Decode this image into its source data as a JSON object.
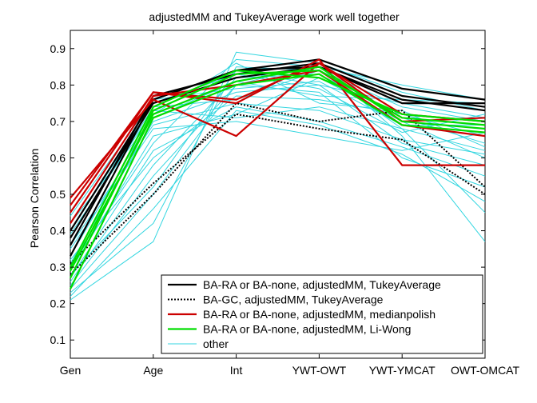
{
  "chart_data": {
    "type": "line",
    "title": "adjustedMM and TukeyAverage work well together",
    "xlabel": "",
    "ylabel": "Pearson Correlation",
    "categories": [
      "Gen",
      "Age",
      "Int",
      "YWT-OWT",
      "YWT-YMCAT",
      "OWT-OMCAT"
    ],
    "y_ticks": [
      "0.1",
      "0.2",
      "0.3",
      "0.4",
      "0.5",
      "0.6",
      "0.7",
      "0.8",
      "0.9"
    ],
    "ylim": [
      0.05,
      0.95
    ],
    "grid": false,
    "legend_position": "bottom-right",
    "legend": [
      {
        "label": "BA-RA or BA-none, adjustedMM, TukeyAverage",
        "color": "#000000",
        "style": "solid"
      },
      {
        "label": "BA-GC, adjustedMM, TukeyAverage",
        "color": "#000000",
        "style": "dotted"
      },
      {
        "label": "BA-RA or BA-none, adjustedMM, medianpolish",
        "color": "#cc0000",
        "style": "solid"
      },
      {
        "label": "BA-RA or BA-none, adjustedMM, Li-Wong",
        "color": "#00dd00",
        "style": "solid"
      },
      {
        "label": "other",
        "color": "#33d6e0",
        "style": "thin"
      }
    ],
    "series": [
      {
        "group": "other",
        "values": [
          0.21,
          0.37,
          0.89,
          0.86,
          0.66,
          0.37
        ]
      },
      {
        "group": "other",
        "values": [
          0.23,
          0.42,
          0.85,
          0.84,
          0.68,
          0.45
        ]
      },
      {
        "group": "other",
        "values": [
          0.25,
          0.55,
          0.8,
          0.78,
          0.6,
          0.52
        ]
      },
      {
        "group": "other",
        "values": [
          0.27,
          0.62,
          0.74,
          0.7,
          0.63,
          0.55
        ]
      },
      {
        "group": "other",
        "values": [
          0.29,
          0.66,
          0.72,
          0.82,
          0.7,
          0.6
        ]
      },
      {
        "group": "other",
        "values": [
          0.31,
          0.7,
          0.78,
          0.8,
          0.64,
          0.58
        ]
      },
      {
        "group": "other",
        "values": [
          0.33,
          0.72,
          0.86,
          0.75,
          0.73,
          0.63
        ]
      },
      {
        "group": "other",
        "values": [
          0.35,
          0.68,
          0.7,
          0.66,
          0.62,
          0.67
        ]
      },
      {
        "group": "other",
        "values": [
          0.38,
          0.74,
          0.76,
          0.84,
          0.74,
          0.7
        ]
      },
      {
        "group": "other",
        "values": [
          0.4,
          0.75,
          0.83,
          0.79,
          0.67,
          0.72
        ]
      },
      {
        "group": "other",
        "values": [
          0.42,
          0.71,
          0.81,
          0.77,
          0.76,
          0.75
        ]
      },
      {
        "group": "other",
        "values": [
          0.44,
          0.76,
          0.79,
          0.81,
          0.69,
          0.69
        ]
      },
      {
        "group": "other",
        "values": [
          0.26,
          0.58,
          0.82,
          0.83,
          0.71,
          0.64
        ]
      },
      {
        "group": "other",
        "values": [
          0.3,
          0.64,
          0.87,
          0.85,
          0.8,
          0.76
        ]
      },
      {
        "group": "other",
        "values": [
          0.36,
          0.69,
          0.75,
          0.73,
          0.65,
          0.61
        ]
      },
      {
        "group": "other",
        "values": [
          0.22,
          0.46,
          0.73,
          0.69,
          0.61,
          0.48
        ]
      },
      {
        "group": "other",
        "values": [
          0.32,
          0.6,
          0.77,
          0.76,
          0.72,
          0.66
        ]
      },
      {
        "group": "other",
        "values": [
          0.28,
          0.52,
          0.84,
          0.8,
          0.75,
          0.71
        ]
      },
      {
        "group": "other",
        "values": [
          0.39,
          0.73,
          0.71,
          0.74,
          0.68,
          0.62
        ]
      },
      {
        "group": "other",
        "values": [
          0.24,
          0.5,
          0.8,
          0.86,
          0.78,
          0.73
        ]
      },
      {
        "group": "BA-RA or BA-none, adjustedMM, TukeyAverage",
        "values": [
          0.33,
          0.76,
          0.84,
          0.87,
          0.79,
          0.76
        ]
      },
      {
        "group": "BA-RA or BA-none, adjustedMM, TukeyAverage",
        "values": [
          0.36,
          0.77,
          0.83,
          0.86,
          0.77,
          0.74
        ]
      },
      {
        "group": "BA-RA or BA-none, adjustedMM, TukeyAverage",
        "values": [
          0.4,
          0.76,
          0.84,
          0.85,
          0.75,
          0.75
        ]
      },
      {
        "group": "BA-RA or BA-none, adjustedMM, TukeyAverage",
        "values": [
          0.38,
          0.75,
          0.82,
          0.85,
          0.76,
          0.73
        ]
      },
      {
        "group": "BA-GC, adjustedMM, TukeyAverage",
        "values": [
          0.28,
          0.5,
          0.75,
          0.7,
          0.73,
          0.52
        ]
      },
      {
        "group": "BA-GC, adjustedMM, TukeyAverage",
        "values": [
          0.31,
          0.53,
          0.72,
          0.68,
          0.65,
          0.5
        ]
      },
      {
        "group": "BA-RA or BA-none, adjustedMM, medianpolish",
        "values": [
          0.45,
          0.78,
          0.75,
          0.87,
          0.58,
          0.58
        ]
      },
      {
        "group": "BA-RA or BA-none, adjustedMM, medianpolish",
        "values": [
          0.49,
          0.76,
          0.66,
          0.86,
          0.7,
          0.71
        ]
      },
      {
        "group": "BA-RA or BA-none, adjustedMM, medianpolish",
        "values": [
          0.42,
          0.77,
          0.8,
          0.84,
          0.69,
          0.66
        ]
      },
      {
        "group": "BA-RA or BA-none, adjustedMM, medianpolish",
        "values": [
          0.47,
          0.78,
          0.76,
          0.86,
          0.72,
          0.7
        ]
      },
      {
        "group": "BA-RA or BA-none, adjustedMM, Li-Wong",
        "values": [
          0.24,
          0.71,
          0.8,
          0.83,
          0.69,
          0.67
        ]
      },
      {
        "group": "BA-RA or BA-none, adjustedMM, Li-Wong",
        "values": [
          0.27,
          0.73,
          0.83,
          0.84,
          0.71,
          0.69
        ]
      },
      {
        "group": "BA-RA or BA-none, adjustedMM, Li-Wong",
        "values": [
          0.3,
          0.74,
          0.84,
          0.82,
          0.72,
          0.7
        ]
      },
      {
        "group": "BA-RA or BA-none, adjustedMM, Li-Wong",
        "values": [
          0.29,
          0.72,
          0.81,
          0.85,
          0.7,
          0.68
        ]
      }
    ]
  }
}
